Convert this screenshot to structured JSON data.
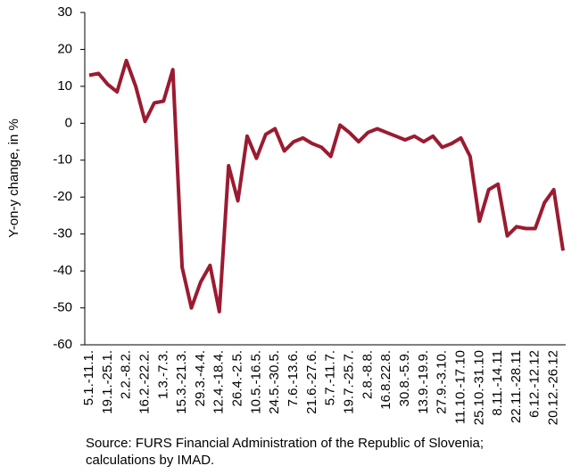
{
  "chart_data": {
    "type": "line",
    "y_label": "Y-on-y change, in %",
    "note": "Source: FURS Financial Administration of the Republic of Slovenia; calculations by IMAD.",
    "categories": [
      "5.1.-11.1.",
      null,
      "19.1.-25.1.",
      null,
      "2.2.-8.2.",
      null,
      "16.2.-22.2.",
      null,
      "1.3.-7.3.",
      null,
      "15.3.-21.3.",
      null,
      "29.3.-4.4.",
      null,
      "12.4.-18.4.",
      null,
      "26.4.-2.5.",
      null,
      "10.5.-16.5.",
      null,
      "24.5.-30.5.",
      null,
      "7.6.-13.6.",
      null,
      "21.6.-27.6.",
      null,
      "5.7.-11.7.",
      null,
      "19.7.-25.7.",
      null,
      "2.8.-8.8.",
      null,
      "16.8.22.8.",
      null,
      "30.8.-5.9.",
      null,
      "13.9.-19.9.",
      null,
      "27.9.-3.10.",
      null,
      "11.10.-17.10",
      null,
      "25.10.-31.10",
      null,
      "8.11.-14.11",
      null,
      "22.11.-28.11",
      null,
      "6.12.-12.12",
      null,
      "20.12.-26.12",
      null
    ],
    "series": [
      {
        "name": "Y-on-y change",
        "color": "#9b1b30",
        "values": [
          13,
          13.5,
          10.5,
          8.5,
          17,
          10,
          0.5,
          5.5,
          6,
          14.5,
          -39,
          -50,
          -43,
          -38.5,
          -51,
          -11.5,
          -21,
          -3.5,
          -9.5,
          -3,
          -1.5,
          -7.5,
          -5,
          -4,
          -5.5,
          -6.5,
          -9,
          -0.5,
          -2.5,
          -5,
          -2.5,
          -1.5,
          -2.5,
          -3.5,
          -4.5,
          -3.5,
          -5,
          -3.5,
          -6.5,
          -5.5,
          -4,
          -9,
          -26.5,
          -18,
          -16.5,
          -30.5,
          -28,
          -28.5,
          -28.5,
          -21.5,
          -18,
          -34.5
        ]
      }
    ],
    "ylim": [
      -60,
      30
    ],
    "yticks": [
      30,
      20,
      10,
      0,
      -10,
      -20,
      -30,
      -40,
      -50,
      -60
    ],
    "grid": false
  }
}
